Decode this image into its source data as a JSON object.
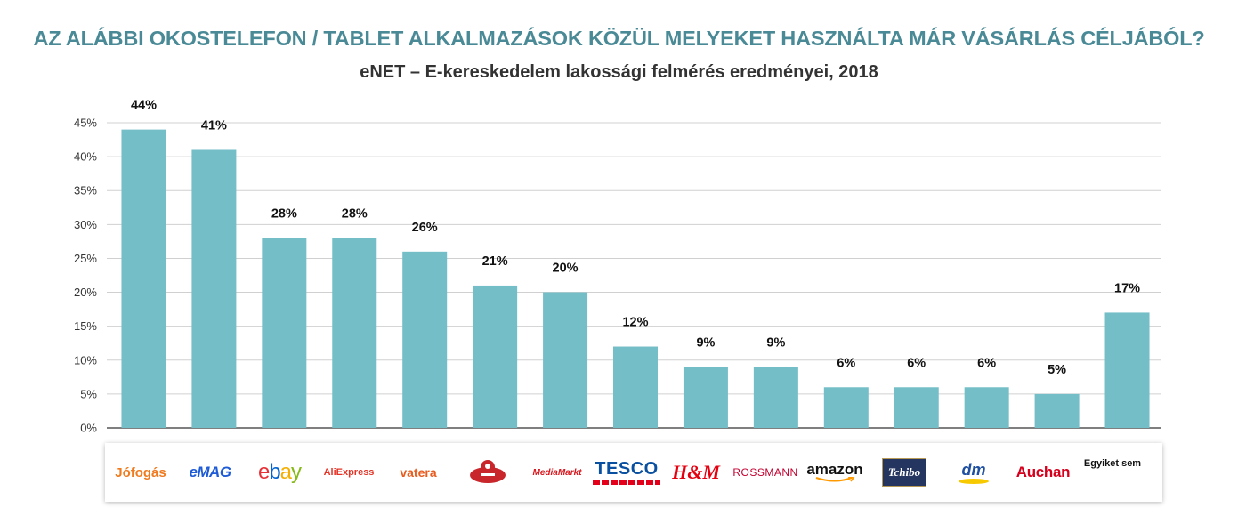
{
  "header": {
    "title": "AZ ALÁBBI OKOSTELEFON / TABLET ALKALMAZÁSOK KÖZÜL MELYEKET HASZNÁLTA MÁR VÁSÁRLÁS CÉLJÁBÓL?",
    "subtitle": "eNET – E-kereskedelem lakossági felmérés eredményei, 2018"
  },
  "chart_data": {
    "type": "bar",
    "title": "AZ ALÁBBI OKOSTELEFON / TABLET ALKALMAZÁSOK KÖZÜL MELYEKET HASZNÁLTA MÁR VÁSÁRLÁS CÉLJÁBÓL?",
    "subtitle": "eNET – E-kereskedelem lakossági felmérés eredményei, 2018",
    "categories": [
      "Jófogás",
      "eMAG",
      "ebay",
      "AliExpress",
      "vatera",
      "Wish",
      "MediaMarkt",
      "TESCO",
      "H&M",
      "ROSSMANN",
      "amazon",
      "Tchibo",
      "dm",
      "Auchan",
      "Egyiket sem"
    ],
    "values": [
      44,
      41,
      28,
      28,
      26,
      21,
      20,
      12,
      9,
      9,
      6,
      6,
      6,
      5,
      17
    ],
    "data_labels": [
      "44%",
      "41%",
      "28%",
      "28%",
      "26%",
      "21%",
      "20%",
      "12%",
      "9%",
      "9%",
      "6%",
      "6%",
      "6%",
      "5%",
      "17%"
    ],
    "yticks": [
      "0%",
      "5%",
      "10%",
      "15%",
      "20%",
      "25%",
      "30%",
      "35%",
      "40%",
      "45%"
    ],
    "ylim": [
      0,
      45
    ],
    "ystep": 5,
    "xlabel": "",
    "ylabel": "",
    "grid": true,
    "legend": "none",
    "bar_color": "#74bec8",
    "grid_color": "#d0d0d0"
  },
  "logos": [
    {
      "text": "Jófogás",
      "color": "#f07a1e"
    },
    {
      "text": "eMAG",
      "color": "#1e5bd6"
    },
    {
      "text": "ebay",
      "color": "#0064d2"
    },
    {
      "text": "AliExpress",
      "color": "#e43225"
    },
    {
      "text": "vatera",
      "color": "#e85d1f"
    },
    {
      "text": "",
      "color": "#c8262a"
    },
    {
      "text": "MediaMarkt",
      "color": "#d8171e"
    },
    {
      "text": "TESCO",
      "color": "#0a50a1"
    },
    {
      "text": "H&M",
      "color": "#e50010"
    },
    {
      "text": "ROSSMANN",
      "color": "#c3002f"
    },
    {
      "text": "amazon",
      "color": "#111111"
    },
    {
      "text": "Tchibo",
      "color": "#ffffff"
    },
    {
      "text": "dm",
      "color": "#1e4fa0"
    },
    {
      "text": "Auchan",
      "color": "#d6001c"
    },
    {
      "text": "Egyiket sem",
      "color": "#111111"
    }
  ]
}
